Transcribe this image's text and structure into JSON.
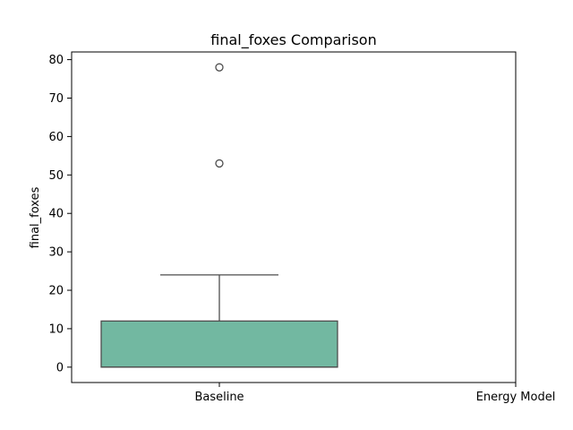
{
  "chart_data": {
    "type": "box",
    "title": "final_foxes Comparison",
    "xlabel": "",
    "ylabel": "final_foxes",
    "categories": [
      "Baseline",
      "Energy Model"
    ],
    "ylim": [
      -4,
      82
    ],
    "yticks": [
      0,
      10,
      20,
      30,
      40,
      50,
      60,
      70,
      80
    ],
    "grid": false,
    "boxes": [
      {
        "category": "Baseline",
        "whisker_low": 0,
        "q1": 0,
        "median": 0,
        "q3": 12,
        "whisker_high": 24,
        "outliers": [
          53,
          78
        ],
        "color": "#72b8a1"
      },
      {
        "category": "Energy Model",
        "whisker_low": null,
        "q1": null,
        "median": null,
        "q3": null,
        "whisker_high": null,
        "outliers": [],
        "color": "#72b8a1"
      }
    ],
    "colors": {
      "box_fill": "#72b8a1",
      "line": "#4d4d4d",
      "axis": "#000000"
    }
  }
}
